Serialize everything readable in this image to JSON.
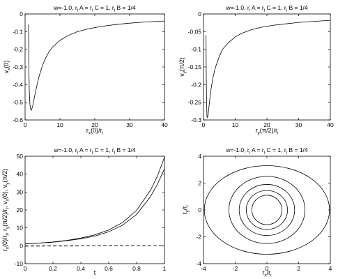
{
  "chart_data": [
    {
      "type": "line",
      "title": "w=-1.0,  r_i A = r_i C = 1, r_i B = 1/4",
      "xlabel": "r_x(0)/r_i",
      "ylabel": "v_x(0)",
      "xlim": [
        0,
        40
      ],
      "ylim": [
        -0.6,
        0
      ],
      "xticks": [
        "0",
        "10",
        "20",
        "30",
        "40"
      ],
      "yticks": [
        "0",
        "-0.1",
        "-0.2",
        "-0.3",
        "-0.4",
        "-0.5",
        "-0.6"
      ],
      "series": [
        {
          "x": [
            1.0,
            1.05,
            1.1,
            1.2,
            1.35,
            1.5,
            1.8,
            2.2,
            2.6,
            3,
            3.5,
            4,
            5,
            6,
            7,
            8,
            10,
            12,
            15,
            18,
            22,
            26,
            30,
            35,
            40
          ],
          "y": [
            -0.06,
            -0.2,
            -0.32,
            -0.43,
            -0.5,
            -0.535,
            -0.545,
            -0.52,
            -0.48,
            -0.44,
            -0.395,
            -0.355,
            -0.29,
            -0.245,
            -0.21,
            -0.185,
            -0.15,
            -0.125,
            -0.1,
            -0.085,
            -0.07,
            -0.06,
            -0.052,
            -0.045,
            -0.04
          ]
        }
      ]
    },
    {
      "type": "line",
      "title": "w=-1.0,  r_i A = r_i C = 1, r_i B = 1/4",
      "xlabel": "r_y(π/2)/r_i",
      "ylabel": "v_y(π/2)",
      "xlim": [
        0,
        40
      ],
      "ylim": [
        -0.3,
        0
      ],
      "xticks": [
        "0",
        "10",
        "20",
        "30",
        "40"
      ],
      "yticks": [
        "0",
        "-0.05",
        "-0.1",
        "-0.15",
        "-0.2",
        "-0.25",
        "-0.3"
      ],
      "series": [
        {
          "x": [
            0.8,
            0.85,
            0.9,
            1.0,
            1.1,
            1.25,
            1.45,
            1.7,
            2,
            2.5,
            3,
            3.5,
            4,
            5,
            6,
            8,
            10,
            12,
            15,
            18,
            22,
            26,
            30,
            35,
            40
          ],
          "y": [
            -0.06,
            -0.14,
            -0.2,
            -0.26,
            -0.29,
            -0.293,
            -0.285,
            -0.265,
            -0.24,
            -0.205,
            -0.18,
            -0.16,
            -0.145,
            -0.12,
            -0.1,
            -0.08,
            -0.065,
            -0.055,
            -0.045,
            -0.038,
            -0.032,
            -0.028,
            -0.024,
            -0.021,
            -0.018
          ]
        }
      ]
    },
    {
      "type": "line",
      "title": "w=-1.0,  r_i A = r_i C = 1, r_i B = 1/4",
      "xlabel": "t",
      "ylabel": "r_x(0)/r_i, r_y(π/2)/r_i, v_x(0), v_y(π/2)",
      "xlim": [
        0,
        1
      ],
      "ylim": [
        -10,
        50
      ],
      "xticks": [
        "0",
        "0.2",
        "0.4",
        "0.6",
        "0.8",
        "1"
      ],
      "yticks": [
        "-10",
        "0",
        "10",
        "20",
        "30",
        "40",
        "50"
      ],
      "series": [
        {
          "x": [
            0,
            0.1,
            0.2,
            0.3,
            0.4,
            0.5,
            0.6,
            0.7,
            0.8,
            0.9,
            0.95,
            1.0
          ],
          "y": [
            1.0,
            1.5,
            2.0,
            2.8,
            3.9,
            5.4,
            7.8,
            11.5,
            17.5,
            27.5,
            34.5,
            43.0
          ]
        },
        {
          "x": [
            0,
            0.1,
            0.2,
            0.3,
            0.4,
            0.5,
            0.6,
            0.7,
            0.8,
            0.9,
            0.95,
            1.0
          ],
          "y": [
            1.0,
            1.5,
            2.1,
            3.0,
            4.3,
            6.1,
            8.8,
            13.0,
            19.8,
            31.0,
            39.0,
            49.5
          ]
        },
        {
          "x": [
            0,
            1
          ],
          "y": [
            -0.2,
            -0.02
          ],
          "dashed": true
        },
        {
          "x": [
            0,
            1
          ],
          "y": [
            -0.1,
            -0.01
          ],
          "dashed": true
        }
      ]
    },
    {
      "type": "line",
      "title": "w=-1.0,  r_i A = r_i C = 1, r_i B = 1/4",
      "xlabel": "r_x/r_i",
      "ylabel": "r_y/r_i",
      "xlim": [
        -4,
        4
      ],
      "ylim": [
        -4,
        4
      ],
      "xticks": [
        "-4",
        "-2",
        "0",
        "2",
        "4"
      ],
      "yticks": [
        "-4",
        "-2",
        "0",
        "2",
        "4"
      ],
      "ellipses": [
        {
          "a": 0.95,
          "b": 1.1
        },
        {
          "a": 1.3,
          "b": 1.45
        },
        {
          "a": 1.75,
          "b": 1.9
        },
        {
          "a": 2.4,
          "b": 2.5
        },
        {
          "a": 3.95,
          "b": 3.3
        }
      ]
    }
  ]
}
